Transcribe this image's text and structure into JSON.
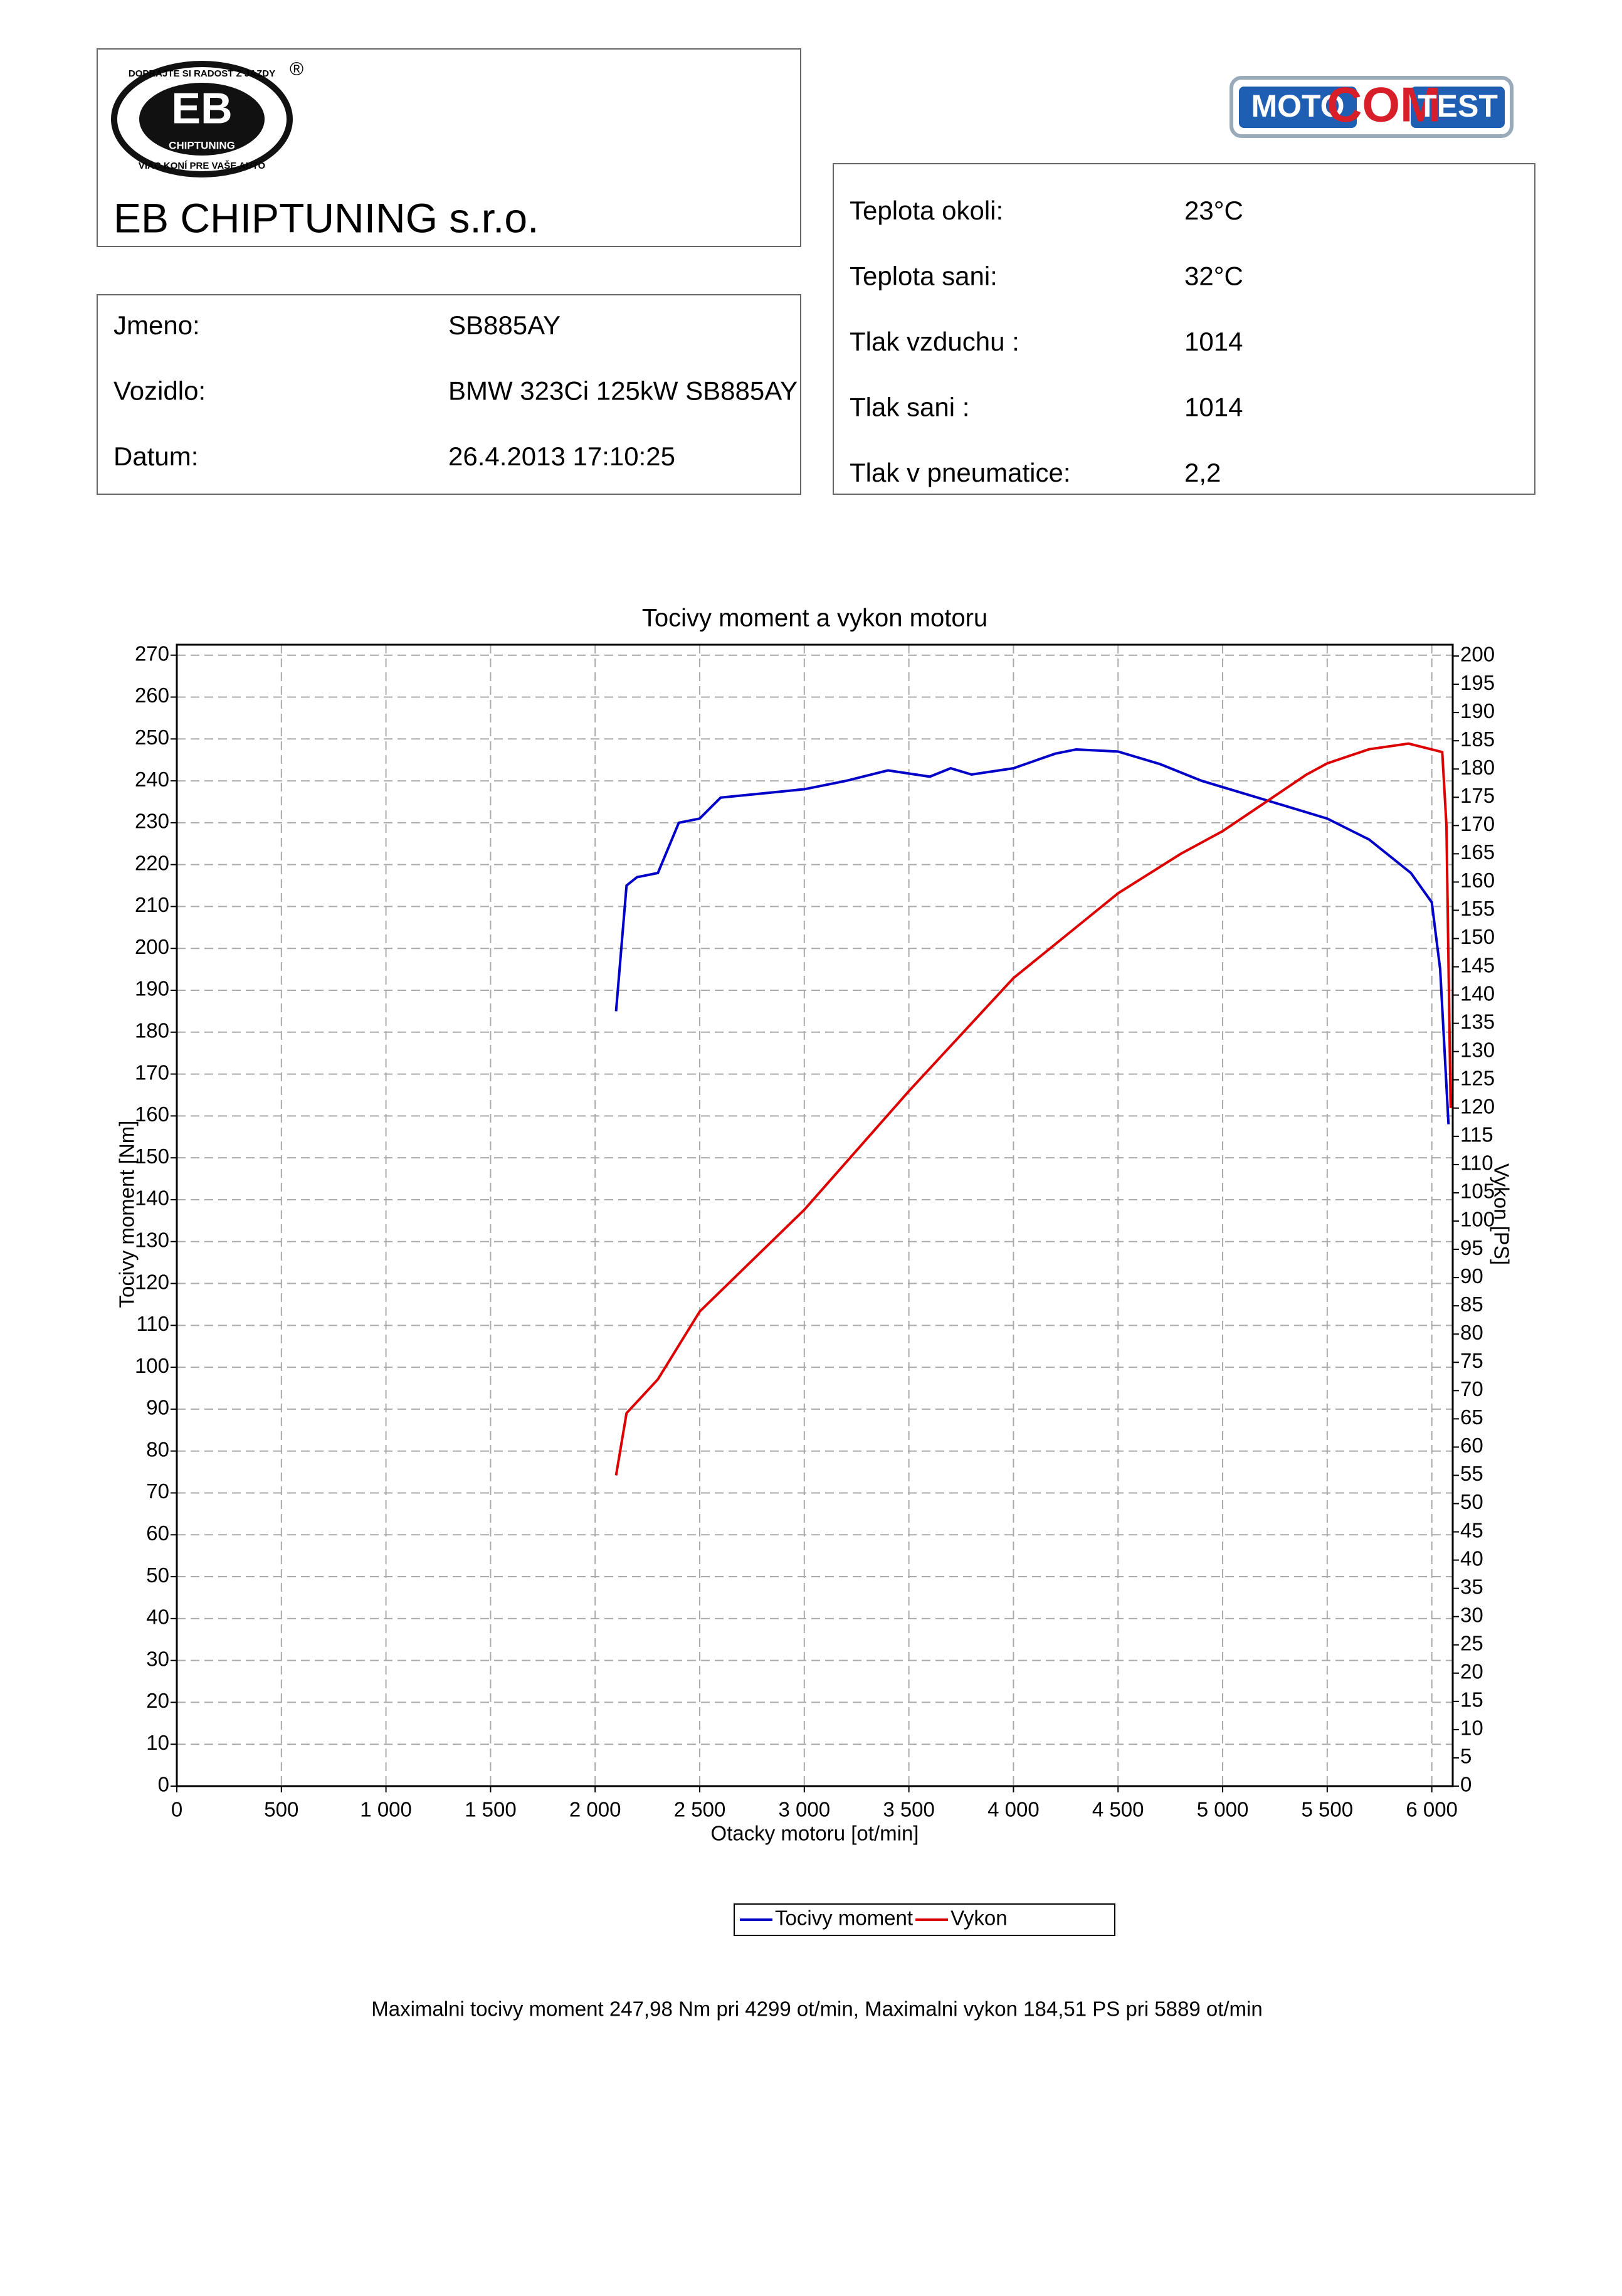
{
  "logos": {
    "eb": {
      "top": "DOPRAJTE SI RADOSŤ Z JAZDY",
      "registered": "®",
      "initials": "EB",
      "name": "CHIPTUNING",
      "bottom": "VIAC KONÍ PRE VAŠE AUTO"
    },
    "motocomtest": [
      "MOTO",
      "COM",
      "TEST"
    ]
  },
  "company": "EB CHIPTUNING s.r.o.",
  "vehicle_info": [
    [
      "Jmeno:",
      "SB885AY"
    ],
    [
      "Vozidlo:",
      "BMW 323Ci 125kW SB885AY"
    ],
    [
      "Datum:",
      "26.4.2013 17:10:25"
    ]
  ],
  "conditions": [
    [
      "Teplota okoli:",
      "23°C"
    ],
    [
      "Teplota sani:",
      "32°C"
    ],
    [
      "Tlak vzduchu :",
      "1014"
    ],
    [
      "Tlak sani :",
      "1014"
    ],
    [
      "Tlak v pneumatice:",
      "2,2"
    ]
  ],
  "chart_data": {
    "type": "line",
    "title": "Tocivy moment a vykon motoru",
    "x_label": "Otacky motoru [ot/min]",
    "y_label": "Tocivy moment [Nm]",
    "y2_label": "Vykon [PS]",
    "xlim": [
      0,
      6100
    ],
    "ylim": [
      0,
      272.5
    ],
    "y2lim": [
      0,
      202
    ],
    "xticks": [
      0,
      500,
      {
        "value": 1000,
        "label": "1 000"
      },
      {
        "value": 1500,
        "label": "1 500"
      },
      {
        "value": 2000,
        "label": "2 000"
      },
      {
        "value": 2500,
        "label": "2 500"
      },
      {
        "value": 3000,
        "label": "3 000"
      },
      {
        "value": 3500,
        "label": "3 500"
      },
      {
        "value": 4000,
        "label": "4 000"
      },
      {
        "value": 4500,
        "label": "4 500"
      },
      {
        "value": 5000,
        "label": "5 000"
      },
      {
        "value": 5500,
        "label": "5 500"
      },
      {
        "value": 6000,
        "label": "6 000"
      }
    ],
    "yticks": [
      0,
      10,
      20,
      30,
      40,
      50,
      60,
      70,
      80,
      90,
      100,
      110,
      120,
      130,
      140,
      150,
      160,
      170,
      180,
      190,
      200,
      210,
      220,
      230,
      240,
      250,
      260,
      270
    ],
    "y2ticks": [
      0,
      5,
      10,
      15,
      20,
      25,
      30,
      35,
      40,
      45,
      50,
      55,
      60,
      65,
      70,
      75,
      80,
      85,
      90,
      95,
      100,
      105,
      110,
      115,
      120,
      125,
      130,
      135,
      140,
      145,
      150,
      155,
      160,
      165,
      170,
      175,
      180,
      185,
      190,
      195,
      200
    ],
    "grid": true,
    "series": [
      {
        "name": "Tocivy moment",
        "color": "#0000c8",
        "x": [
          2100,
          2150,
          2200,
          2300,
          2400,
          2500,
          2600,
          2800,
          3000,
          3200,
          3400,
          3600,
          3700,
          3800,
          4000,
          4200,
          4300,
          4500,
          4700,
          4900,
          5100,
          5300,
          5500,
          5700,
          5900,
          6000,
          6040,
          6080
        ],
        "values": [
          185,
          215,
          217,
          218,
          230,
          231,
          236,
          237,
          238,
          240,
          242.5,
          241,
          243,
          241.5,
          243,
          246.5,
          247.5,
          247,
          244,
          240,
          237,
          234,
          231,
          226,
          218,
          211,
          195,
          158
        ]
      },
      {
        "name": "Vykon",
        "color": "#dc0000",
        "axis": "y2",
        "x": [
          2100,
          2150,
          2300,
          2500,
          3000,
          3500,
          3700,
          4000,
          4300,
          4500,
          4800,
          5000,
          5200,
          5400,
          5500,
          5700,
          5889,
          6050,
          6070,
          6090
        ],
        "values": [
          55,
          66,
          72,
          84,
          102,
          123,
          131,
          143,
          152,
          158,
          165,
          169,
          174,
          179,
          181,
          183.5,
          184.5,
          183,
          170,
          120
        ]
      }
    ]
  },
  "summary": "Maximalni tocivy moment 247,98 Nm pri 4299 ot/min,  Maximalni vykon 184,51 PS pri 5889 ot/min"
}
